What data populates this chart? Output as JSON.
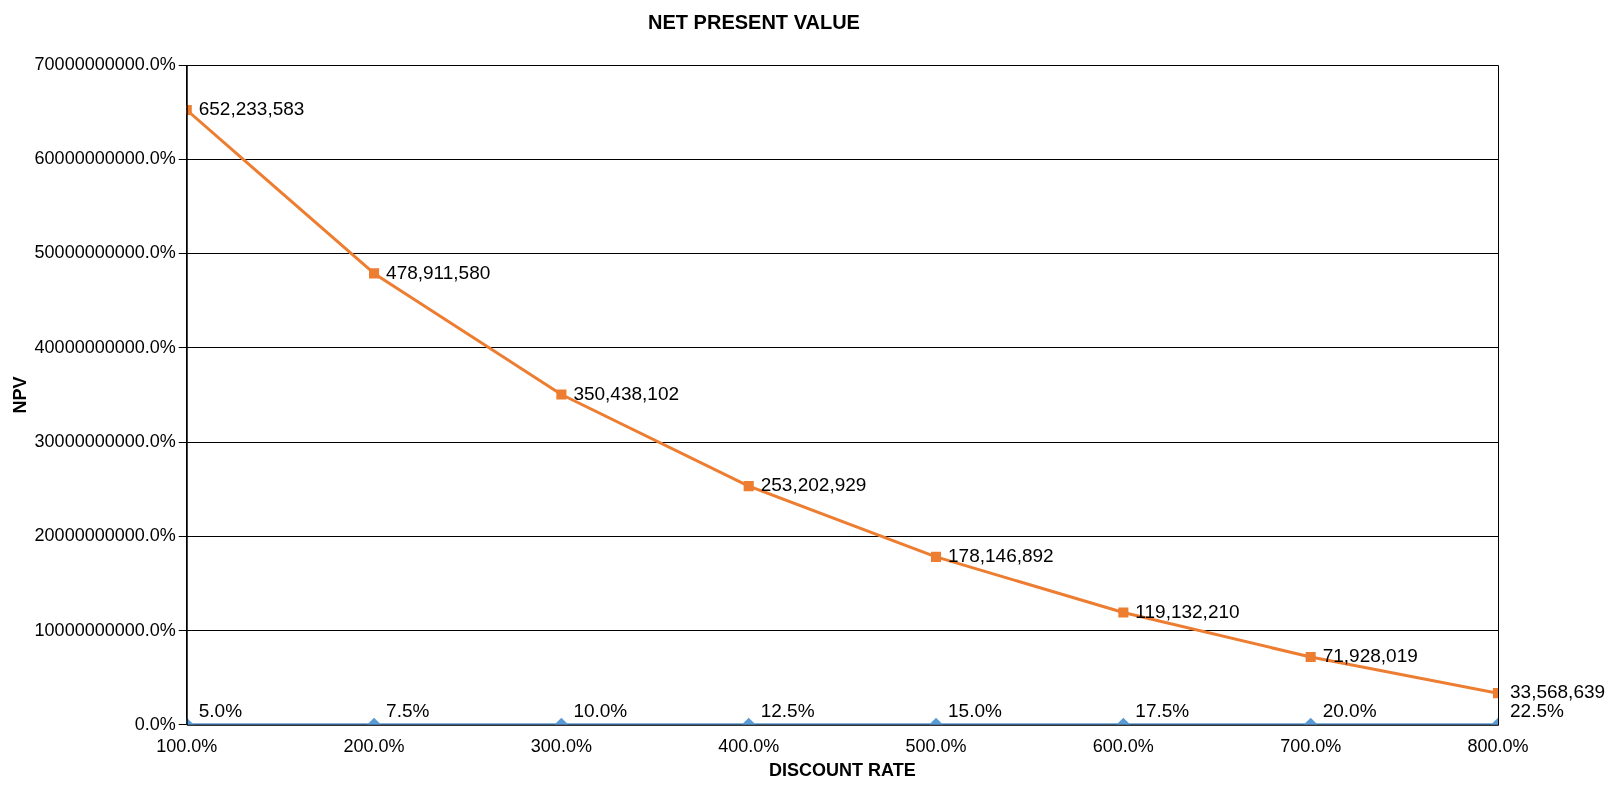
{
  "chart_data": {
    "type": "line",
    "title": "NET PRESENT VALUE",
    "xlabel": "DISCOUNT RATE",
    "ylabel": "NPV",
    "x": [
      1,
      2,
      3,
      4,
      5,
      6,
      7,
      8
    ],
    "xlim": [
      1,
      8
    ],
    "xticks": [
      {
        "value": 1,
        "label": "100.0%"
      },
      {
        "value": 2,
        "label": "200.0%"
      },
      {
        "value": 3,
        "label": "300.0%"
      },
      {
        "value": 4,
        "label": "400.0%"
      },
      {
        "value": 5,
        "label": "500.0%"
      },
      {
        "value": 6,
        "label": "600.0%"
      },
      {
        "value": 7,
        "label": "700.0%"
      },
      {
        "value": 8,
        "label": "800.0%"
      }
    ],
    "ylim": [
      0,
      700000000
    ],
    "yticks": [
      {
        "value": 0,
        "label": "0.0%"
      },
      {
        "value": 100000000,
        "label": "10000000000.0%"
      },
      {
        "value": 200000000,
        "label": "20000000000.0%"
      },
      {
        "value": 300000000,
        "label": "30000000000.0%"
      },
      {
        "value": 400000000,
        "label": "40000000000.0%"
      },
      {
        "value": 500000000,
        "label": "50000000000.0%"
      },
      {
        "value": 600000000,
        "label": "60000000000.0%"
      },
      {
        "value": 700000000,
        "label": "70000000000.0%"
      }
    ],
    "grid": "y",
    "legend": false,
    "series": [
      {
        "color": "#5b9bd5",
        "marker": "diamond",
        "values": [
          0.05,
          0.075,
          0.1,
          0.125,
          0.15,
          0.175,
          0.2,
          0.225
        ],
        "value_labels": [
          "5.0%",
          "7.5%",
          "10.0%",
          "12.5%",
          "15.0%",
          "17.5%",
          "20.0%",
          "22.5%"
        ]
      },
      {
        "color": "#ed7d31",
        "marker": "square",
        "values": [
          652233583,
          478911580,
          350438102,
          253202929,
          178146892,
          119132210,
          71928019,
          33568639
        ],
        "value_labels": [
          "652,233,583",
          "478,911,580",
          "350,438,102",
          "253,202,929",
          "178,146,892",
          "119,132,210",
          "71,928,019",
          "33,568,639"
        ]
      }
    ]
  }
}
